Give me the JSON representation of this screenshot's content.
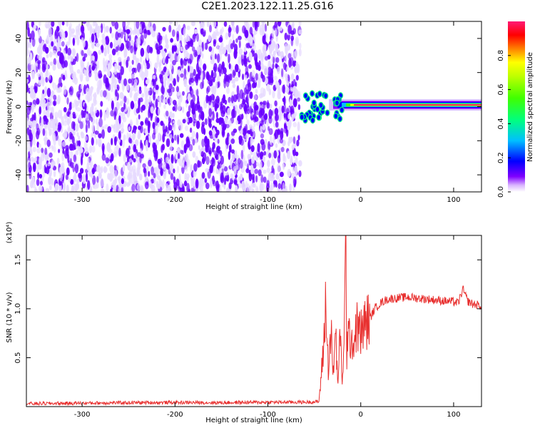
{
  "title": "C2E1.2023.122.11.25.G16",
  "colors": {
    "background": "#ffffff",
    "snr_line": "#e8302f",
    "spectrogram_dark": "#6a00ff",
    "spectrogram_light": "#e6d9ff"
  },
  "chart_data": [
    {
      "type": "heatmap",
      "xlabel": "Height of straight line (km)",
      "ylabel": "Frequency (Hz)",
      "xlim": [
        -360,
        130
      ],
      "ylim": [
        -50,
        50
      ],
      "x_ticks": [
        -300,
        -200,
        -100,
        0,
        100
      ],
      "y_ticks": [
        -40,
        -20,
        0,
        20,
        40
      ],
      "colorbar": {
        "label": "Normalized spectral amplitude",
        "range": [
          0.0,
          1.0
        ],
        "ticks": [
          0.0,
          0.2,
          0.4,
          0.6,
          0.8
        ],
        "colormap": [
          "#ffffff",
          "#8000ff",
          "#0000ff",
          "#00bfff",
          "#00ff80",
          "#80ff00",
          "#ffff00",
          "#ff8000",
          "#ff0000",
          "#ff1a75"
        ]
      },
      "regions": [
        {
          "description": "broadband noise",
          "x_range": [
            -360,
            -65
          ],
          "freq_range": [
            -50,
            50
          ],
          "amplitude": 0.1
        },
        {
          "description": "signal band",
          "x_range": [
            -65,
            130
          ],
          "freq_center": 1,
          "amplitude": 0.9
        }
      ]
    },
    {
      "type": "line",
      "xlabel": "Height of straight line (km)",
      "ylabel": "SNR (10 * v/v)",
      "y_multiplier": "(x10⁴)",
      "xlim": [
        -360,
        130
      ],
      "ylim": [
        0,
        17500
      ],
      "x_ticks": [
        -300,
        -200,
        -100,
        0,
        100
      ],
      "y_ticks": [
        5000,
        10000,
        15000
      ],
      "y_tick_labels": [
        "0.5",
        "1.0",
        "1.5"
      ],
      "series": [
        {
          "x": [
            -360,
            -300,
            -250,
            -200,
            -150,
            -100,
            -60,
            -45,
            -40,
            -38,
            -35,
            -32,
            -30,
            -27,
            -25,
            -22,
            -20,
            -18,
            -16,
            -15,
            -14,
            -12,
            -10,
            -8,
            -5,
            0,
            5,
            10,
            15,
            20,
            25,
            30,
            40,
            50,
            60,
            70,
            80,
            90,
            100,
            105,
            110,
            115,
            120,
            125,
            130
          ],
          "y": [
            300,
            350,
            400,
            420,
            400,
            450,
            450,
            500,
            6000,
            10500,
            4000,
            8000,
            3000,
            7500,
            2500,
            6800,
            3000,
            5500,
            17500,
            5000,
            8000,
            6500,
            7800,
            6000,
            8200,
            7500,
            8500,
            9000,
            10000,
            10500,
            10800,
            11000,
            11100,
            11200,
            11100,
            11000,
            10900,
            10800,
            10700,
            10600,
            12000,
            10800,
            10500,
            10400,
            10300
          ]
        }
      ]
    }
  ]
}
